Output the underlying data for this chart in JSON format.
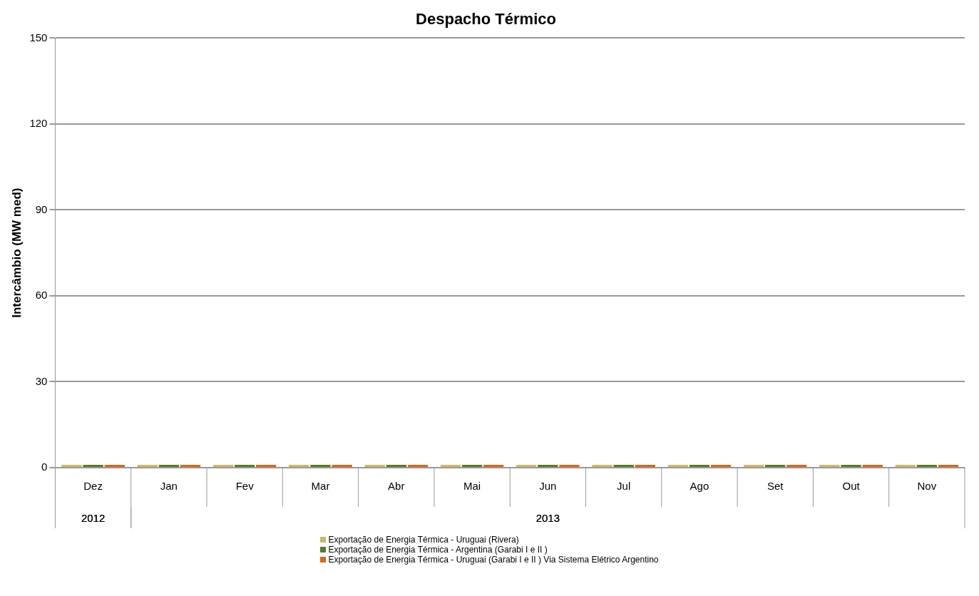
{
  "chart_data": {
    "type": "bar",
    "title": "Despacho Térmico",
    "ylabel": "Intercâmbio (MW med)",
    "categories": [
      "Dez",
      "Jan",
      "Fev",
      "Mar",
      "Abr",
      "Mai",
      "Jun",
      "Jul",
      "Ago",
      "Set",
      "Out",
      "Nov"
    ],
    "series": [
      {
        "name": "Exportação de Energia Térmica - Uruguai (Rivera)",
        "color": "#c9b96f",
        "values": [
          0,
          0,
          0,
          0,
          0,
          0,
          0,
          0,
          0,
          0,
          0,
          0
        ]
      },
      {
        "name": "Exportação de Energia Térmica - Argentina (Garabi I e II )",
        "color": "#5b7a2a",
        "values": [
          0,
          0,
          0,
          0,
          0,
          0,
          0,
          0,
          0,
          0,
          0,
          0
        ]
      },
      {
        "name": "Exportação de Energia Térmica - Uruguai (Garabi I e II ) Via Sistema Elétrico Argentino",
        "color": "#d4691f",
        "values": [
          0,
          0,
          0,
          0,
          0,
          0,
          0,
          0,
          0,
          0,
          0,
          0
        ]
      }
    ],
    "ylim": [
      0,
      150
    ],
    "yticks": [
      0,
      30,
      60,
      90,
      120,
      150
    ],
    "grid": "y",
    "legend": "bottom",
    "annotations": [
      "2012",
      "2013"
    ]
  }
}
